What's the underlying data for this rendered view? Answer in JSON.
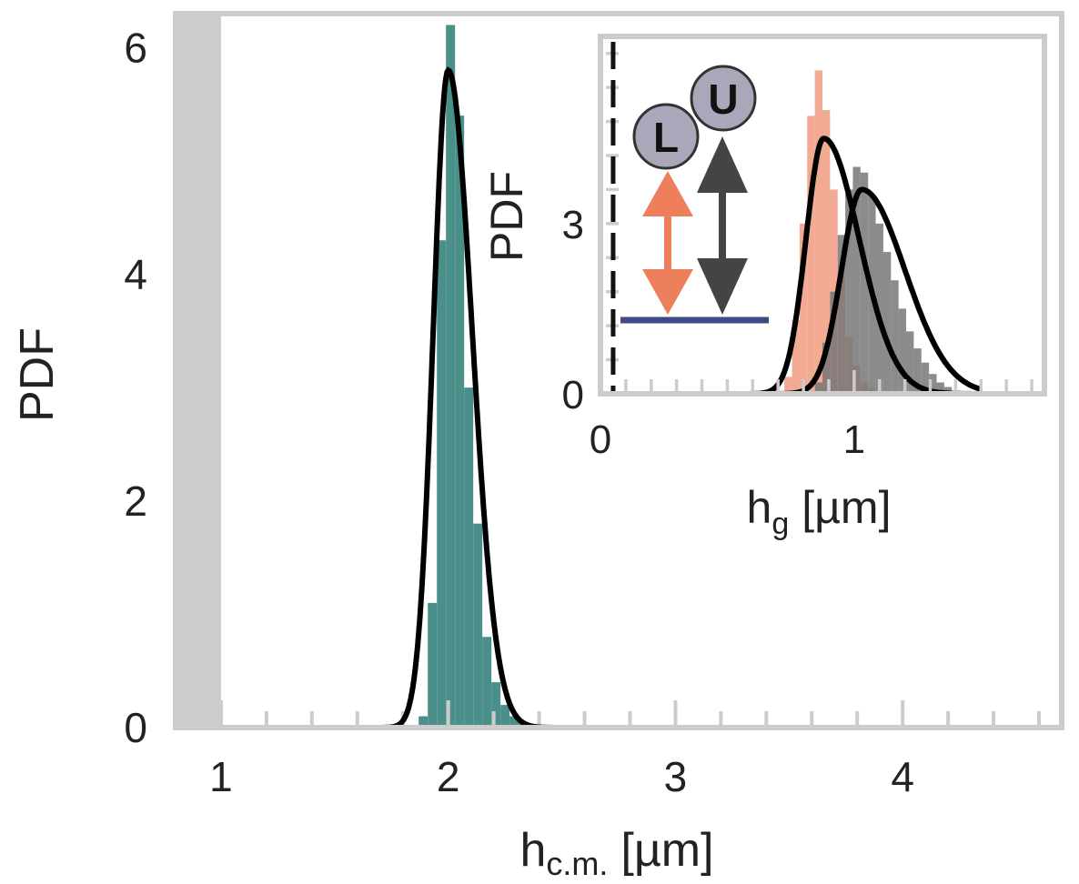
{
  "chart_data": [
    {
      "type": "bar",
      "name": "main",
      "xlabel": "h",
      "xlabel_sub": "c.m.",
      "xlabel_unit": "[µm]",
      "ylabel": "PDF",
      "xlim": [
        0.8,
        4.7
      ],
      "ylim": [
        0,
        6.3
      ],
      "xticks": [
        {
          "value": 1,
          "label": "1"
        },
        {
          "value": 2,
          "label": "2"
        },
        {
          "value": 3,
          "label": "3"
        },
        {
          "value": 4,
          "label": "4"
        }
      ],
      "yticks": [
        {
          "value": 0,
          "label": "0"
        },
        {
          "value": 2,
          "label": "2"
        },
        {
          "value": 4,
          "label": "4"
        },
        {
          "value": 6,
          "label": "6"
        }
      ],
      "excluded_region": [
        0.8,
        1.0
      ],
      "histogram": {
        "color": "#4a8f8a",
        "bin_width": 0.04,
        "bins": [
          {
            "x": 1.89,
            "y": 0.1
          },
          {
            "x": 1.93,
            "y": 1.1
          },
          {
            "x": 1.97,
            "y": 4.3
          },
          {
            "x": 2.01,
            "y": 6.2
          },
          {
            "x": 2.05,
            "y": 5.4
          },
          {
            "x": 2.09,
            "y": 3.0
          },
          {
            "x": 2.13,
            "y": 1.8
          },
          {
            "x": 2.17,
            "y": 0.8
          },
          {
            "x": 2.21,
            "y": 0.4
          },
          {
            "x": 2.25,
            "y": 0.2
          },
          {
            "x": 2.29,
            "y": 0.1
          },
          {
            "x": 2.33,
            "y": 0.05
          }
        ]
      },
      "fit_curve": {
        "color": "#000000",
        "mu": 2.0,
        "sigma_left": 0.066,
        "sigma_right": 0.105,
        "peak": 5.8,
        "x_from": 1.0,
        "x_to": 4.6
      }
    },
    {
      "type": "bar",
      "name": "inset",
      "xlabel": "h",
      "xlabel_sub": "g",
      "xlabel_unit": "[µm]",
      "ylabel": "PDF",
      "xlim": [
        0,
        1.75
      ],
      "ylim": [
        0,
        6.3
      ],
      "xticks": [
        {
          "value": 0,
          "label": "0"
        },
        {
          "value": 1,
          "label": "1"
        }
      ],
      "yticks": [
        {
          "value": 0,
          "label": "0"
        },
        {
          "value": 3,
          "label": "3"
        }
      ],
      "series": [
        {
          "color": "#f09b80",
          "bin_width": 0.03,
          "bins": [
            {
              "x": 0.74,
              "y": 0.3
            },
            {
              "x": 0.77,
              "y": 1.3
            },
            {
              "x": 0.8,
              "y": 3.0
            },
            {
              "x": 0.83,
              "y": 4.9
            },
            {
              "x": 0.86,
              "y": 5.7
            },
            {
              "x": 0.89,
              "y": 5.0
            },
            {
              "x": 0.92,
              "y": 3.6
            },
            {
              "x": 0.95,
              "y": 2.1
            },
            {
              "x": 0.98,
              "y": 1.0
            },
            {
              "x": 1.01,
              "y": 0.5
            },
            {
              "x": 1.04,
              "y": 0.2
            },
            {
              "x": 1.07,
              "y": 0.1
            }
          ]
        },
        {
          "color": "#777777",
          "bin_width": 0.03,
          "bins": [
            {
              "x": 0.86,
              "y": 0.2
            },
            {
              "x": 0.89,
              "y": 0.9
            },
            {
              "x": 0.92,
              "y": 1.8
            },
            {
              "x": 0.95,
              "y": 2.8
            },
            {
              "x": 0.98,
              "y": 3.6
            },
            {
              "x": 1.01,
              "y": 4.0
            },
            {
              "x": 1.04,
              "y": 3.9
            },
            {
              "x": 1.07,
              "y": 3.5
            },
            {
              "x": 1.1,
              "y": 3.0
            },
            {
              "x": 1.13,
              "y": 2.5
            },
            {
              "x": 1.16,
              "y": 2.0
            },
            {
              "x": 1.19,
              "y": 1.5
            },
            {
              "x": 1.22,
              "y": 1.1
            },
            {
              "x": 1.25,
              "y": 0.8
            },
            {
              "x": 1.28,
              "y": 0.55
            },
            {
              "x": 1.31,
              "y": 0.35
            },
            {
              "x": 1.34,
              "y": 0.2
            },
            {
              "x": 1.37,
              "y": 0.12
            },
            {
              "x": 1.4,
              "y": 0.05
            }
          ]
        }
      ],
      "fit_curves": [
        {
          "color": "#000000",
          "mu": 0.88,
          "sigma_left": 0.07,
          "sigma_right": 0.14,
          "peak": 4.5
        },
        {
          "color": "#000000",
          "mu": 1.03,
          "sigma_left": 0.08,
          "sigma_right": 0.17,
          "peak": 3.6
        }
      ],
      "schematic": {
        "bead_L_label": "L",
        "bead_U_label": "U",
        "bead_fill": "#a9a8bb",
        "L_arrow_color": "#ee7f5c",
        "U_arrow_color": "#444444",
        "surface_color": "#3d4a85"
      }
    }
  ]
}
